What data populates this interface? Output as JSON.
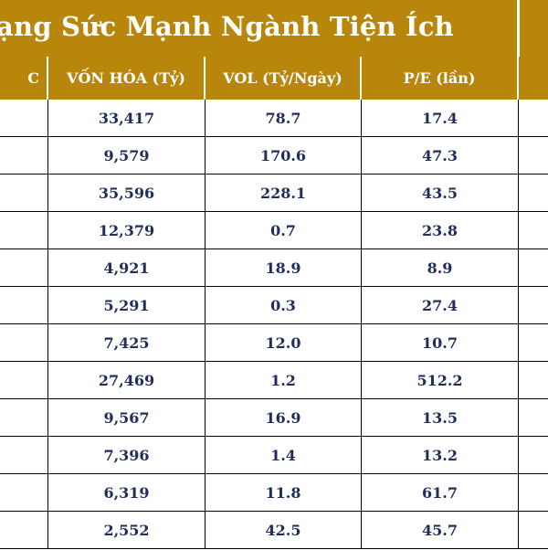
{
  "title": "ạng Sức Mạnh Ngành Tiện Ích",
  "colors": {
    "header_bg": "#b8860b",
    "text": "#1f2d5a",
    "header_text": "#ffffff"
  },
  "headers": [
    "C",
    "VỐN HÓA (Tỷ)",
    "VOL (Tỷ/Ngày)",
    "P/E (lần)",
    ""
  ],
  "rows": [
    [
      "",
      "33,417",
      "78.7",
      "17.4",
      ""
    ],
    [
      "",
      "9,579",
      "170.6",
      "47.3",
      ""
    ],
    [
      "",
      "35,596",
      "228.1",
      "43.5",
      ""
    ],
    [
      "",
      "12,379",
      "0.7",
      "23.8",
      ""
    ],
    [
      "",
      "4,921",
      "18.9",
      "8.9",
      ""
    ],
    [
      "",
      "5,291",
      "0.3",
      "27.4",
      ""
    ],
    [
      "",
      "7,425",
      "12.0",
      "10.7",
      ""
    ],
    [
      "",
      "27,469",
      "1.2",
      "512.2",
      ""
    ],
    [
      "",
      "9,567",
      "16.9",
      "13.5",
      ""
    ],
    [
      "",
      "7,396",
      "1.4",
      "13.2",
      ""
    ],
    [
      "",
      "6,319",
      "11.8",
      "61.7",
      ""
    ],
    [
      "",
      "2,552",
      "42.5",
      "45.7",
      ""
    ]
  ]
}
